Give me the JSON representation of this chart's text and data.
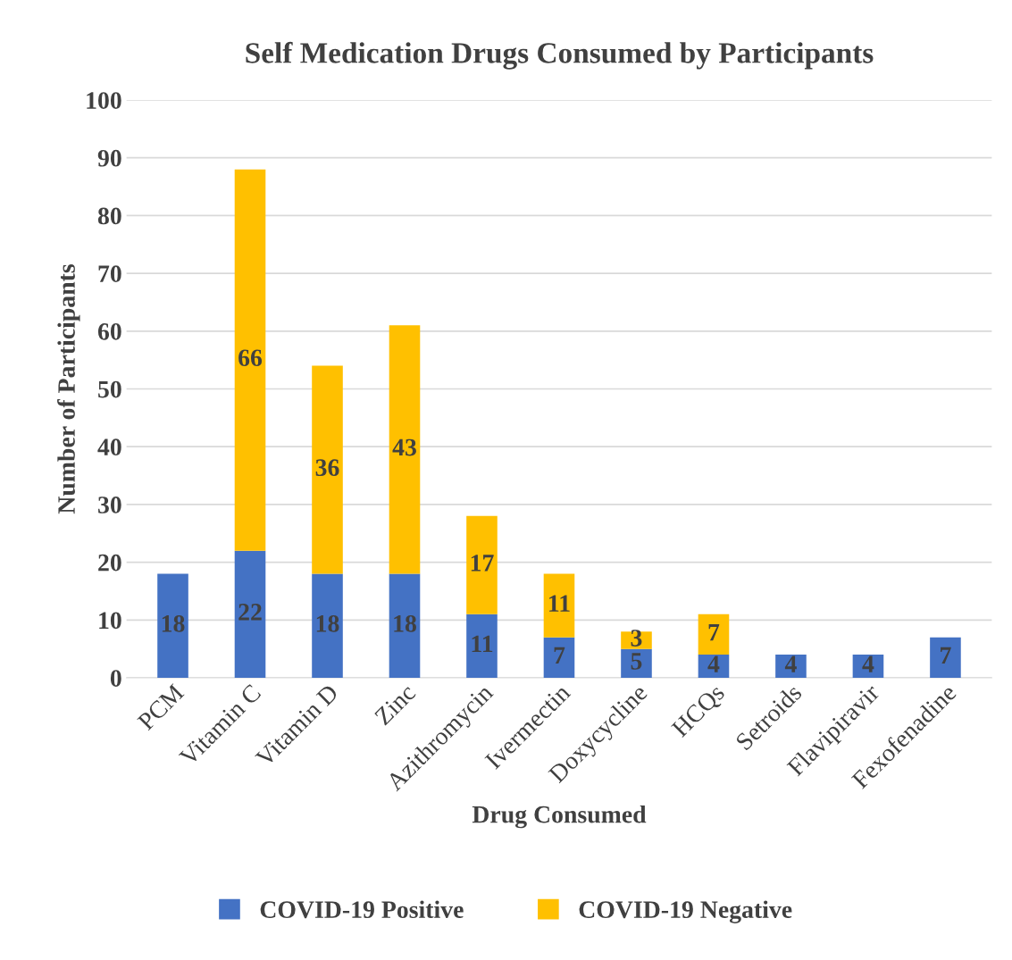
{
  "chart_data": {
    "type": "bar",
    "title": "Self Medication Drugs Consumed by Participants",
    "xlabel": "Drug Consumed",
    "ylabel": "Number of Participants",
    "categories": [
      "PCM",
      "Vitamin C",
      "Vitamin D",
      "Zinc",
      "Azithromycin",
      "Ivermectin",
      "Doxycycline",
      "HCQs",
      "Setroids",
      "Flavipiravir",
      "Fexofenadine"
    ],
    "series": [
      {
        "name": "COVID-19 Positive",
        "color": "#4472c4",
        "values": [
          18,
          22,
          18,
          18,
          11,
          7,
          5,
          4,
          4,
          4,
          7
        ]
      },
      {
        "name": "COVID-19 Negative",
        "color": "#ffc000",
        "values": [
          null,
          66,
          36,
          43,
          17,
          11,
          3,
          7,
          null,
          null,
          null
        ]
      }
    ],
    "stacked": true,
    "data_labels": true,
    "ylim": [
      0,
      100
    ],
    "yticks": [
      0,
      10,
      20,
      30,
      40,
      50,
      60,
      70,
      80,
      90,
      100
    ],
    "grid": "y",
    "legend": "bottom"
  }
}
